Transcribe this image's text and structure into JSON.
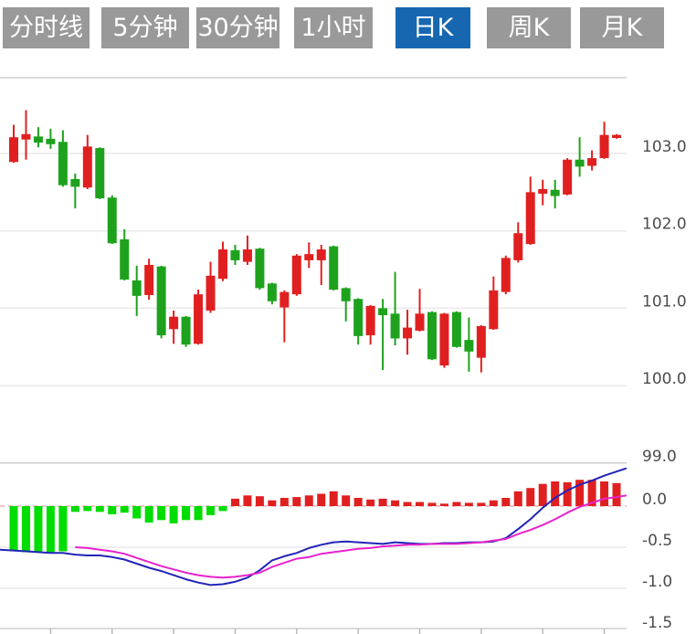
{
  "tab_bar": {
    "items": [
      {
        "name": "tab-time-sharing",
        "label": "分时线",
        "active": false
      },
      {
        "name": "tab-5min",
        "label": "5分钟",
        "active": false
      },
      {
        "name": "tab-30min",
        "label": "30分钟",
        "active": false
      },
      {
        "name": "tab-1hour",
        "label": "1小时",
        "active": false
      },
      {
        "name": "tab-daily-k",
        "label": "日K",
        "active": true
      },
      {
        "name": "tab-weekly-k",
        "label": "周K",
        "active": false
      },
      {
        "name": "tab-monthly-k",
        "label": "月K",
        "active": false
      }
    ],
    "active_bg": "#1767b0",
    "inactive_bg": "#999999",
    "text_color": "#ffffff"
  },
  "chart_data": {
    "type": "candlestick_with_macd",
    "title": "",
    "legend_position": "none",
    "grid": true,
    "price_panel": {
      "ylim": [
        99.0,
        103.98
      ],
      "axis_side": "right",
      "axis": [
        {
          "label": "103.0",
          "value": 103.0
        },
        {
          "label": "102.0",
          "value": 102.0
        },
        {
          "label": "101.0",
          "value": 101.0
        },
        {
          "label": "100.0",
          "value": 100.0
        },
        {
          "label": "99.0",
          "value": 99.0
        }
      ],
      "candles_ohlc": [
        [
          102.89,
          103.37,
          102.88,
          103.21
        ],
        [
          103.18,
          103.56,
          102.92,
          103.25
        ],
        [
          103.22,
          103.34,
          103.08,
          103.14
        ],
        [
          103.19,
          103.32,
          103.06,
          103.12
        ],
        [
          103.15,
          103.3,
          102.57,
          102.59
        ],
        [
          102.67,
          102.74,
          102.29,
          102.57
        ],
        [
          102.56,
          103.24,
          102.54,
          103.09
        ],
        [
          103.07,
          103.08,
          102.41,
          102.42
        ],
        [
          102.43,
          102.46,
          101.83,
          101.84
        ],
        [
          101.89,
          102.02,
          101.36,
          101.37
        ],
        [
          101.36,
          101.55,
          100.9,
          101.16
        ],
        [
          101.17,
          101.64,
          101.11,
          101.56
        ],
        [
          101.54,
          101.55,
          100.61,
          100.65
        ],
        [
          100.73,
          100.97,
          100.54,
          100.89
        ],
        [
          100.89,
          100.9,
          100.5,
          100.53
        ],
        [
          100.54,
          101.24,
          100.53,
          101.18
        ],
        [
          100.97,
          101.6,
          100.94,
          101.42
        ],
        [
          101.38,
          101.86,
          101.35,
          101.76
        ],
        [
          101.75,
          101.82,
          101.56,
          101.62
        ],
        [
          101.6,
          101.94,
          101.56,
          101.76
        ],
        [
          101.77,
          101.78,
          101.24,
          101.26
        ],
        [
          101.32,
          101.33,
          101.05,
          101.09
        ],
        [
          101.01,
          101.23,
          100.56,
          101.21
        ],
        [
          101.18,
          101.7,
          101.16,
          101.68
        ],
        [
          101.62,
          101.85,
          101.52,
          101.7
        ],
        [
          101.62,
          101.82,
          101.3,
          101.76
        ],
        [
          101.8,
          101.81,
          101.23,
          101.24
        ],
        [
          101.26,
          101.27,
          100.83,
          101.09
        ],
        [
          101.12,
          101.13,
          100.53,
          100.64
        ],
        [
          100.65,
          101.04,
          100.53,
          101.03
        ],
        [
          101.0,
          101.12,
          100.2,
          100.91
        ],
        [
          100.93,
          101.47,
          100.52,
          100.61
        ],
        [
          100.61,
          100.98,
          100.4,
          100.75
        ],
        [
          100.71,
          101.25,
          100.7,
          100.93
        ],
        [
          100.95,
          100.96,
          100.33,
          100.34
        ],
        [
          100.26,
          100.94,
          100.23,
          100.93
        ],
        [
          100.95,
          100.96,
          100.49,
          100.5
        ],
        [
          100.59,
          100.88,
          100.18,
          100.44
        ],
        [
          100.36,
          100.78,
          100.17,
          100.77
        ],
        [
          100.73,
          101.41,
          100.72,
          101.23
        ],
        [
          101.21,
          101.68,
          101.18,
          101.65
        ],
        [
          101.62,
          102.11,
          101.59,
          101.97
        ],
        [
          101.83,
          102.7,
          101.82,
          102.5
        ],
        [
          102.48,
          102.66,
          102.33,
          102.54
        ],
        [
          102.53,
          102.66,
          102.29,
          102.45
        ],
        [
          102.47,
          102.94,
          102.46,
          102.92
        ],
        [
          102.92,
          103.21,
          102.7,
          102.83
        ],
        [
          102.84,
          103.04,
          102.78,
          102.94
        ],
        [
          102.94,
          103.41,
          102.93,
          103.24
        ],
        [
          103.2,
          103.25,
          103.19,
          103.24
        ]
      ]
    },
    "macd_panel": {
      "ylim": [
        -1.5,
        0.52
      ],
      "axis_side": "right",
      "axis": [
        {
          "label": "0.0",
          "value": 0.0
        },
        {
          "label": "-0.5",
          "value": -0.5
        },
        {
          "label": "-1.0",
          "value": -1.0
        },
        {
          "label": "-1.5",
          "value": -1.5
        }
      ],
      "histogram": [
        -0.55,
        -0.56,
        -0.55,
        -0.56,
        -0.55,
        -0.07,
        -0.06,
        -0.07,
        -0.1,
        -0.08,
        -0.15,
        -0.2,
        -0.17,
        -0.21,
        -0.17,
        -0.17,
        -0.11,
        -0.06,
        0.09,
        0.13,
        0.12,
        0.07,
        0.1,
        0.11,
        0.13,
        0.15,
        0.18,
        0.13,
        0.1,
        0.08,
        0.09,
        0.07,
        0.05,
        0.05,
        0.04,
        0.03,
        0.05,
        0.04,
        0.04,
        0.07,
        0.1,
        0.18,
        0.22,
        0.27,
        0.3,
        0.29,
        0.32,
        0.32,
        0.3,
        0.28
      ],
      "dif_line": {
        "start_value": -0.53,
        "values": [
          -0.54,
          -0.55,
          -0.56,
          -0.57,
          -0.57,
          -0.59,
          -0.6,
          -0.6,
          -0.62,
          -0.65,
          -0.7,
          -0.75,
          -0.79,
          -0.84,
          -0.89,
          -0.93,
          -0.96,
          -0.95,
          -0.92,
          -0.87,
          -0.78,
          -0.66,
          -0.61,
          -0.57,
          -0.51,
          -0.47,
          -0.44,
          -0.43,
          -0.44,
          -0.45,
          -0.46,
          -0.44,
          -0.45,
          -0.46,
          -0.46,
          -0.45,
          -0.45,
          -0.44,
          -0.44,
          -0.43,
          -0.39,
          -0.28,
          -0.16,
          -0.02,
          0.1,
          0.19,
          0.26,
          0.31,
          0.37,
          0.42
        ],
        "end_value": 0.46
      },
      "dea_line": {
        "values": [
          null,
          null,
          null,
          null,
          null,
          -0.5,
          -0.51,
          -0.53,
          -0.55,
          -0.58,
          -0.63,
          -0.68,
          -0.73,
          -0.77,
          -0.81,
          -0.84,
          -0.86,
          -0.87,
          -0.86,
          -0.84,
          -0.81,
          -0.74,
          -0.69,
          -0.64,
          -0.62,
          -0.58,
          -0.56,
          -0.54,
          -0.52,
          -0.51,
          -0.49,
          -0.48,
          -0.47,
          -0.47,
          -0.46,
          -0.46,
          -0.46,
          -0.45,
          -0.44,
          -0.42,
          -0.4,
          -0.34,
          -0.29,
          -0.23,
          -0.16,
          -0.08,
          -0.01,
          0.04,
          0.09,
          0.11
        ],
        "end_value": 0.13
      }
    },
    "colors": {
      "up_candle": "#e02020",
      "down_candle": "#1ea21e",
      "hist_positive": "#e02020",
      "hist_negative": "#00dd00",
      "dif_line": "#2224b8",
      "dea_line": "#e822cc",
      "gridline": "#e9e9e9",
      "panel_border": "#cfcfcf",
      "zero_dashed_line": "#f0b4b4",
      "axis_text": "#4c4c4c",
      "tick": "#b9b9b9"
    }
  }
}
